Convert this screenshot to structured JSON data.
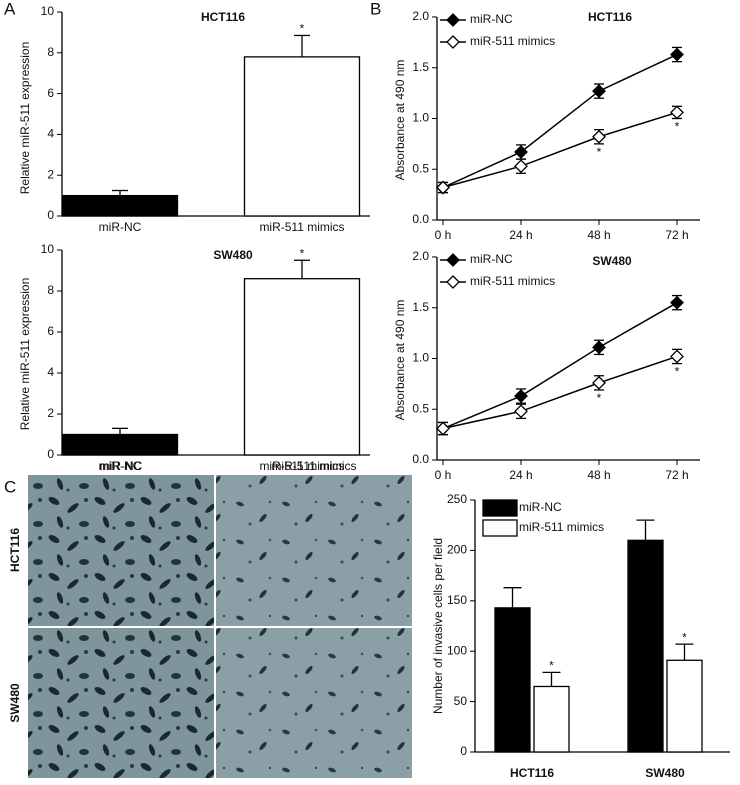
{
  "panels": [
    "A",
    "B",
    "C"
  ],
  "micrographs": {
    "columns": [
      "miR-NC",
      "miR-511 mimics"
    ],
    "rows": [
      "HCT116",
      "SW480"
    ]
  },
  "chart_data": [
    {
      "type": "bar",
      "title": "HCT116",
      "y_label": "Relative miR-511 expression",
      "categories": [
        "miR-NC",
        "miR-511 mimics"
      ],
      "values": [
        1.0,
        7.8
      ],
      "errors": [
        0.25,
        1.05
      ],
      "colors": [
        "#000000",
        "#ffffff"
      ],
      "significance": [
        null,
        "*"
      ],
      "ylim": [
        0,
        10
      ],
      "yticks": [
        0,
        2,
        4,
        6,
        8,
        10
      ]
    },
    {
      "type": "bar",
      "title": "SW480",
      "y_label": "Relative miR-511 expression",
      "categories": [
        "miR-NC",
        "miR-511 mimics"
      ],
      "values": [
        1.0,
        8.6
      ],
      "errors": [
        0.3,
        0.9
      ],
      "colors": [
        "#000000",
        "#ffffff"
      ],
      "significance": [
        null,
        "*"
      ],
      "ylim": [
        0,
        10
      ],
      "yticks": [
        0,
        2,
        4,
        6,
        8,
        10
      ]
    },
    {
      "type": "line",
      "title": "HCT116",
      "y_label": "Absorbance at 490 nm",
      "categories": [
        "0 h",
        "24 h",
        "48 h",
        "72 h"
      ],
      "series": [
        {
          "name": "miR-NC",
          "color": "#000000",
          "marker_fill": "#000000",
          "values": [
            0.32,
            0.67,
            1.27,
            1.63
          ],
          "errors": [
            0.05,
            0.07,
            0.07,
            0.07
          ],
          "significance": [
            null,
            null,
            null,
            null
          ]
        },
        {
          "name": "miR-511 mimics",
          "color": "#000000",
          "marker_fill": "#ffffff",
          "values": [
            0.32,
            0.53,
            0.82,
            1.06
          ],
          "errors": [
            0.05,
            0.07,
            0.07,
            0.06
          ],
          "significance": [
            null,
            null,
            "*",
            "*"
          ]
        }
      ],
      "ylim": [
        0,
        2.0
      ],
      "yticks": [
        {
          "value": 0,
          "label": "0.0"
        },
        {
          "value": 0.5,
          "label": "0.5"
        },
        {
          "value": 1.0,
          "label": "1.0"
        },
        {
          "value": 1.5,
          "label": "1.5"
        },
        {
          "value": 2.0,
          "label": "2.0"
        }
      ]
    },
    {
      "type": "line",
      "title": "SW480",
      "y_label": "Absorbance at 490 nm",
      "categories": [
        "0 h",
        "24 h",
        "48 h",
        "72 h"
      ],
      "series": [
        {
          "name": "miR-NC",
          "color": "#000000",
          "marker_fill": "#000000",
          "values": [
            0.31,
            0.63,
            1.11,
            1.55
          ],
          "errors": [
            0.06,
            0.07,
            0.07,
            0.07
          ],
          "significance": [
            null,
            null,
            null,
            null
          ]
        },
        {
          "name": "miR-511 mimics",
          "color": "#000000",
          "marker_fill": "#ffffff",
          "values": [
            0.31,
            0.48,
            0.76,
            1.02
          ],
          "errors": [
            0.06,
            0.07,
            0.07,
            0.07
          ],
          "significance": [
            null,
            null,
            "*",
            "*"
          ]
        }
      ],
      "ylim": [
        0,
        2.0
      ],
      "yticks": [
        {
          "value": 0,
          "label": "0.0"
        },
        {
          "value": 0.5,
          "label": "0.5"
        },
        {
          "value": 1.0,
          "label": "1.0"
        },
        {
          "value": 1.5,
          "label": "1.5"
        },
        {
          "value": 2.0,
          "label": "2.0"
        }
      ]
    },
    {
      "type": "grouped_bar",
      "y_label": "Number of invasive cells per field",
      "categories": [
        "HCT116",
        "SW480"
      ],
      "series": [
        {
          "name": "miR-NC",
          "color": "#000000",
          "values": [
            143,
            210
          ],
          "errors": [
            20,
            20
          ],
          "significance": [
            null,
            null
          ]
        },
        {
          "name": "miR-511 mimics",
          "color": "#ffffff",
          "values": [
            65,
            91
          ],
          "errors": [
            14,
            16
          ],
          "significance": [
            "*",
            "*"
          ]
        }
      ],
      "ylim": [
        0,
        250
      ],
      "yticks": [
        0,
        50,
        100,
        150,
        200,
        250
      ]
    }
  ]
}
